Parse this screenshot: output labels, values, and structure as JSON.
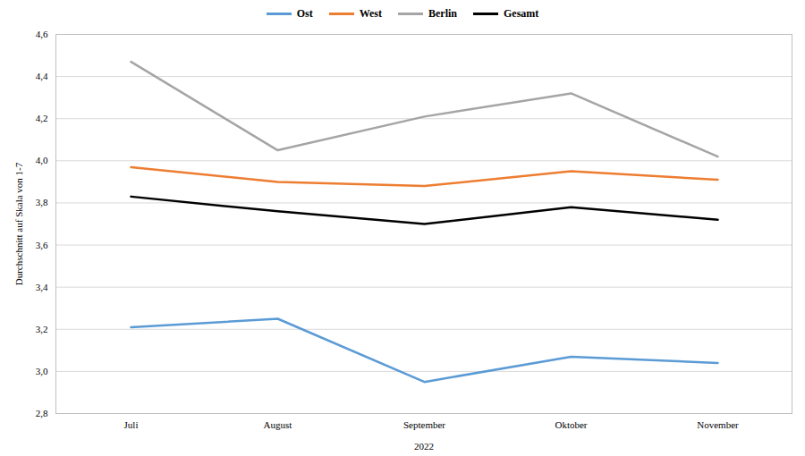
{
  "chart_data": {
    "type": "line",
    "y_label": "Durchschnitt auf Skala von 1-7",
    "x_label": "2022",
    "categories": [
      "Juli",
      "August",
      "September",
      "Oktober",
      "November"
    ],
    "series": [
      {
        "name": "Ost",
        "color": "#5B9BD5",
        "values": [
          3.21,
          3.25,
          2.95,
          3.07,
          3.04
        ]
      },
      {
        "name": "West",
        "color": "#ED7D31",
        "values": [
          3.97,
          3.9,
          3.88,
          3.95,
          3.91
        ]
      },
      {
        "name": "Berlin",
        "color": "#A5A5A5",
        "values": [
          4.47,
          4.05,
          4.21,
          4.32,
          4.02
        ]
      },
      {
        "name": "Gesamt",
        "color": "#000000",
        "values": [
          3.83,
          3.76,
          3.7,
          3.78,
          3.72
        ]
      }
    ],
    "ylim": [
      2.8,
      4.6
    ],
    "yticks": [
      {
        "value": 2.8,
        "label": "2,8"
      },
      {
        "value": 3.0,
        "label": "3,0"
      },
      {
        "value": 3.2,
        "label": "3,2"
      },
      {
        "value": 3.4,
        "label": "3,4"
      },
      {
        "value": 3.6,
        "label": "3,6"
      },
      {
        "value": 3.8,
        "label": "3,8"
      },
      {
        "value": 4.0,
        "label": "4,0"
      },
      {
        "value": 4.2,
        "label": "4,2"
      },
      {
        "value": 4.4,
        "label": "4,4"
      },
      {
        "value": 4.6,
        "label": "4,6"
      }
    ],
    "grid": true,
    "legend": "top"
  }
}
